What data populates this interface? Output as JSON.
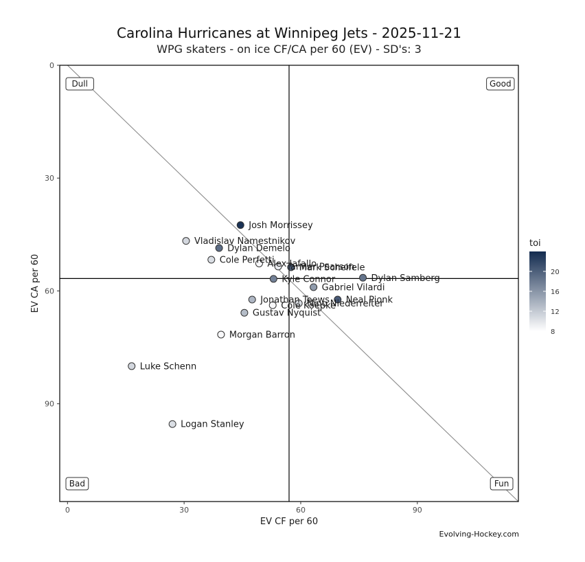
{
  "header": {
    "title": "Carolina Hurricanes at Winnipeg Jets - 2025-11-21",
    "subtitle": "WPG skaters - on ice CF/CA per 60 (EV) - SD's: 3"
  },
  "caption": "Evolving-Hockey.com",
  "chart_data": {
    "type": "scatter",
    "title": "Carolina Hurricanes at Winnipeg Jets - 2025-11-21",
    "subtitle": "WPG skaters - on ice CF/CA per 60 (EV) - SD's: 3",
    "xlabel": "EV CF per 60",
    "ylabel": "EV CA per 60",
    "xlim": [
      -2,
      116
    ],
    "ylim": [
      0,
      116
    ],
    "y_reversed": true,
    "xticks": [
      0,
      30,
      60,
      90
    ],
    "yticks": [
      0,
      30,
      60,
      90
    ],
    "xtick_labels": [
      "0",
      "30",
      "60",
      "90"
    ],
    "ytick_labels": [
      "0",
      "30",
      "60",
      "90"
    ],
    "grid": false,
    "reference_lines": {
      "vline_x": 57.0,
      "hline_y": 56.7,
      "diagonal": "y = x"
    },
    "quadrant_labels": {
      "top_left": "Dull",
      "top_right": "Good",
      "bottom_left": "Bad",
      "bottom_right": "Fun"
    },
    "legend": {
      "title": "toi",
      "placement": "right",
      "range": [
        8,
        24
      ],
      "ticks": [
        8,
        12,
        16,
        20
      ],
      "tick_labels": [
        "8",
        "12",
        "16",
        "20"
      ],
      "color_low": "#ffffff",
      "color_high": "#132b4f"
    },
    "points": [
      {
        "name": "Josh Morrissey",
        "cf": 44.5,
        "ca": 42.5,
        "toi": 23.5
      },
      {
        "name": "Vladislav Namestnikov",
        "cf": 30.5,
        "ca": 46.7,
        "toi": 11.0
      },
      {
        "name": "Dylan Demelo",
        "cf": 39.0,
        "ca": 48.6,
        "toi": 19.0
      },
      {
        "name": "Cole Perfetti",
        "cf": 37.0,
        "ca": 51.7,
        "toi": 10.5
      },
      {
        "name": "Alex Iafallo",
        "cf": 49.3,
        "ca": 52.7,
        "toi": 8.5
      },
      {
        "name": "Tanner Pearson",
        "cf": 54.2,
        "ca": 53.5,
        "toi": 9.5
      },
      {
        "name": "Mark Scheifele",
        "cf": 57.5,
        "ca": 53.7,
        "toi": 20.0
      },
      {
        "name": "Kyle Connor",
        "cf": 53.0,
        "ca": 56.8,
        "toi": 17.5
      },
      {
        "name": "Dylan Samberg",
        "cf": 76.0,
        "ca": 56.5,
        "toi": 18.5
      },
      {
        "name": "Gabriel Vilardi",
        "cf": 63.3,
        "ca": 59.0,
        "toi": 15.5
      },
      {
        "name": "Jonathan Toews",
        "cf": 47.5,
        "ca": 62.3,
        "toi": 13.5
      },
      {
        "name": "Neal Pionk",
        "cf": 69.5,
        "ca": 62.3,
        "toi": 20.5
      },
      {
        "name": "Cole Koepke",
        "cf": 52.8,
        "ca": 63.8,
        "toi": 8.5
      },
      {
        "name": "Nino Niederreiter",
        "cf": 59.5,
        "ca": 63.3,
        "toi": 10.5
      },
      {
        "name": "Gustav Nyquist",
        "cf": 45.5,
        "ca": 65.8,
        "toi": 13.0
      },
      {
        "name": "Morgan Barron",
        "cf": 39.5,
        "ca": 71.6,
        "toi": 8.5
      },
      {
        "name": "Luke Schenn",
        "cf": 16.5,
        "ca": 80.0,
        "toi": 11.0
      },
      {
        "name": "Logan Stanley",
        "cf": 27.0,
        "ca": 95.4,
        "toi": 10.5
      }
    ]
  }
}
